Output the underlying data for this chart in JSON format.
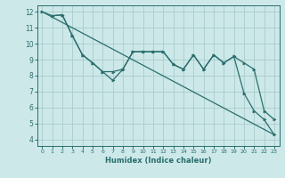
{
  "bg_color": "#cde8e8",
  "grid_color": "#aacccc",
  "line_color": "#2a6e6e",
  "xlabel": "Humidex (Indice chaleur)",
  "xlim": [
    -0.5,
    23.5
  ],
  "ylim": [
    3.6,
    12.4
  ],
  "yticks": [
    4,
    5,
    6,
    7,
    8,
    9,
    10,
    11,
    12
  ],
  "xticks": [
    0,
    1,
    2,
    3,
    4,
    5,
    6,
    7,
    8,
    9,
    10,
    11,
    12,
    13,
    14,
    15,
    16,
    17,
    18,
    19,
    20,
    21,
    22,
    23
  ],
  "line1_x": [
    0,
    23
  ],
  "line1_y": [
    12.0,
    4.3
  ],
  "line2_x": [
    1,
    2,
    3,
    4,
    5,
    6,
    7,
    8,
    9,
    10,
    11,
    12,
    13,
    14,
    15,
    16,
    17,
    18,
    19,
    20,
    21,
    22,
    23
  ],
  "line2_y": [
    11.75,
    11.8,
    10.5,
    9.3,
    8.8,
    8.25,
    7.7,
    8.4,
    9.5,
    9.5,
    9.5,
    9.5,
    8.7,
    8.4,
    9.3,
    8.4,
    9.3,
    8.8,
    9.2,
    8.8,
    8.4,
    5.8,
    5.25
  ],
  "line3_x": [
    0,
    1,
    2,
    3,
    4,
    5,
    6,
    7,
    8,
    9,
    10,
    11,
    12,
    13,
    14,
    15,
    16,
    17,
    18,
    19,
    20,
    21,
    22,
    23
  ],
  "line3_y": [
    12.0,
    11.75,
    11.8,
    10.5,
    9.3,
    8.8,
    8.25,
    8.25,
    8.4,
    9.5,
    9.5,
    9.5,
    9.5,
    8.7,
    8.4,
    9.3,
    8.4,
    9.3,
    8.8,
    9.2,
    6.9,
    5.8,
    5.25,
    4.3
  ]
}
